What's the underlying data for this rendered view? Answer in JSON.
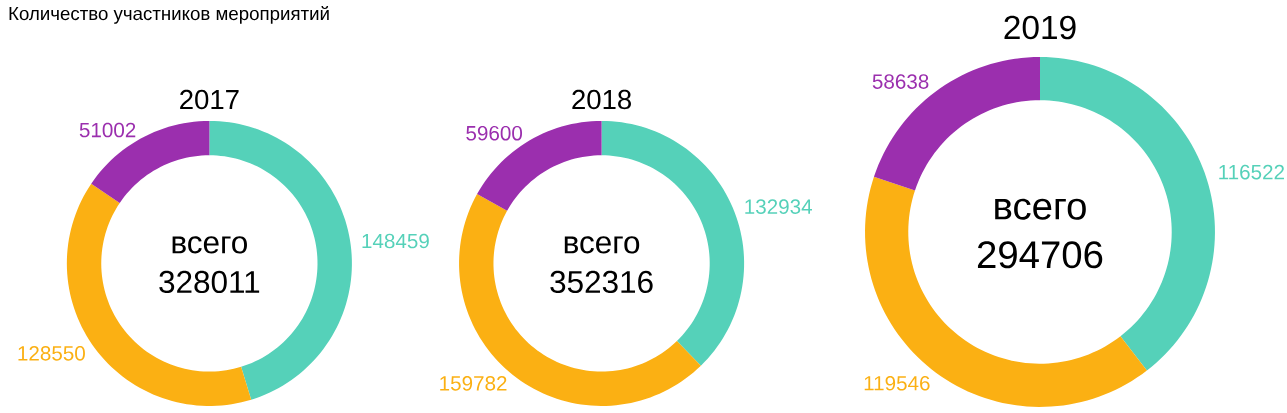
{
  "chart_data": [
    {
      "type": "other",
      "title": "Количество участников мероприятий"
    },
    {
      "type": "donut",
      "title": "2017",
      "categories": [
        null,
        null,
        null
      ],
      "values": [
        148459,
        128550,
        51002
      ],
      "colors": [
        "#55d1b9",
        "#fbb013",
        "#9b2fae"
      ],
      "data_labels": true,
      "annotations": [
        "всего",
        "328011"
      ]
    },
    {
      "type": "donut",
      "title": "2018",
      "categories": [
        null,
        null,
        null
      ],
      "values": [
        132934,
        159782,
        59600
      ],
      "colors": [
        "#55d1b9",
        "#fbb013",
        "#9b2fae"
      ],
      "data_labels": true,
      "annotations": [
        "всего",
        "352316"
      ]
    },
    {
      "type": "donut",
      "title": "2019",
      "categories": [
        null,
        null,
        null
      ],
      "values": [
        116522,
        119546,
        58638
      ],
      "colors": [
        "#55d1b9",
        "#fbb013",
        "#9b2fae"
      ],
      "data_labels": true,
      "annotations": [
        "всего",
        "294706"
      ]
    }
  ]
}
